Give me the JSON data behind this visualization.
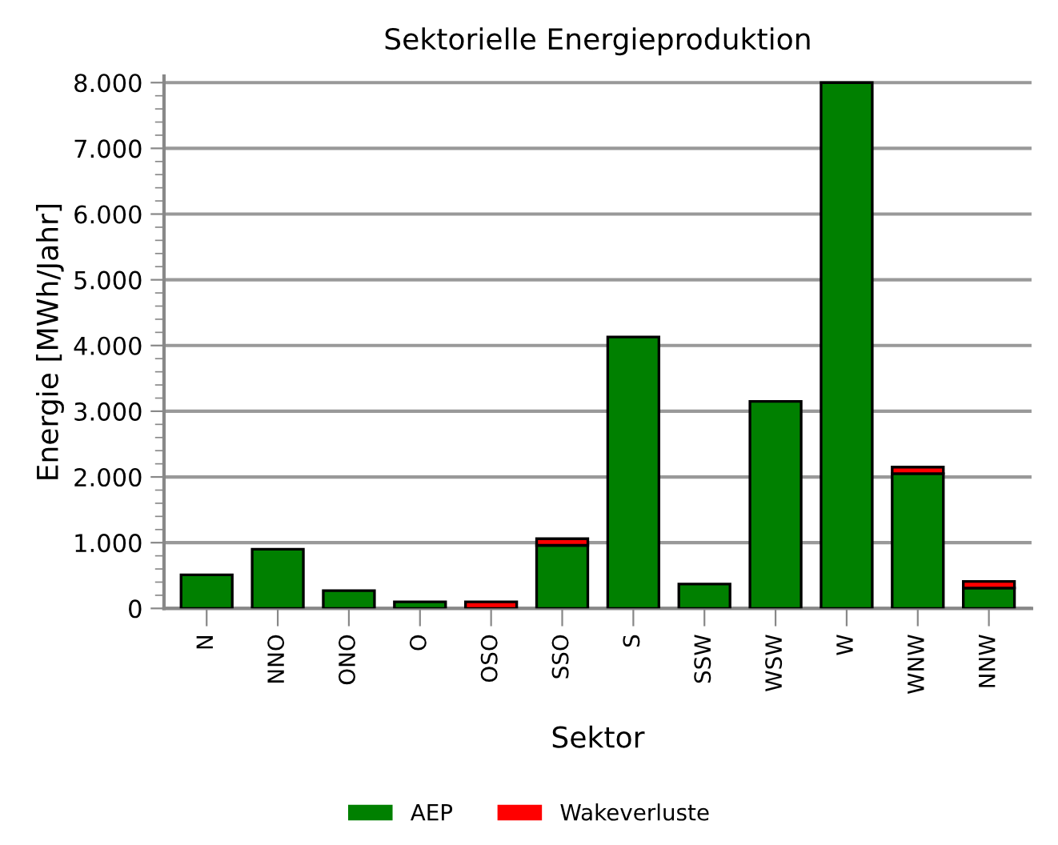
{
  "chart_data": {
    "type": "bar",
    "title": "Sektorielle Energieproduktion",
    "xlabel": "Sektor",
    "ylabel": "Energie [MWh/Jahr]",
    "categories": [
      "N",
      "NNO",
      "ONO",
      "O",
      "OSO",
      "SSO",
      "S",
      "SSW",
      "WSW",
      "W",
      "WNW",
      "NNW"
    ],
    "stacked": true,
    "series": [
      {
        "name": "AEP",
        "color": "#008000",
        "values": [
          510,
          900,
          270,
          100,
          0,
          960,
          4130,
          370,
          3150,
          8000,
          2050,
          310
        ]
      },
      {
        "name": "Wakeverluste",
        "color": "#ff0000",
        "values": [
          0,
          0,
          0,
          0,
          100,
          100,
          0,
          0,
          0,
          0,
          100,
          100
        ]
      }
    ],
    "ylim": [
      0,
      8100
    ],
    "yticks": [
      {
        "value": 0,
        "label": "0"
      },
      {
        "value": 1000,
        "label": "1.000"
      },
      {
        "value": 2000,
        "label": "2.000"
      },
      {
        "value": 3000,
        "label": "3.000"
      },
      {
        "value": 4000,
        "label": "4.000"
      },
      {
        "value": 5000,
        "label": "5.000"
      },
      {
        "value": 6000,
        "label": "6.000"
      },
      {
        "value": 7000,
        "label": "7.000"
      },
      {
        "value": 8000,
        "label": "8.000"
      }
    ],
    "grid": "y",
    "legend": "bottom"
  }
}
